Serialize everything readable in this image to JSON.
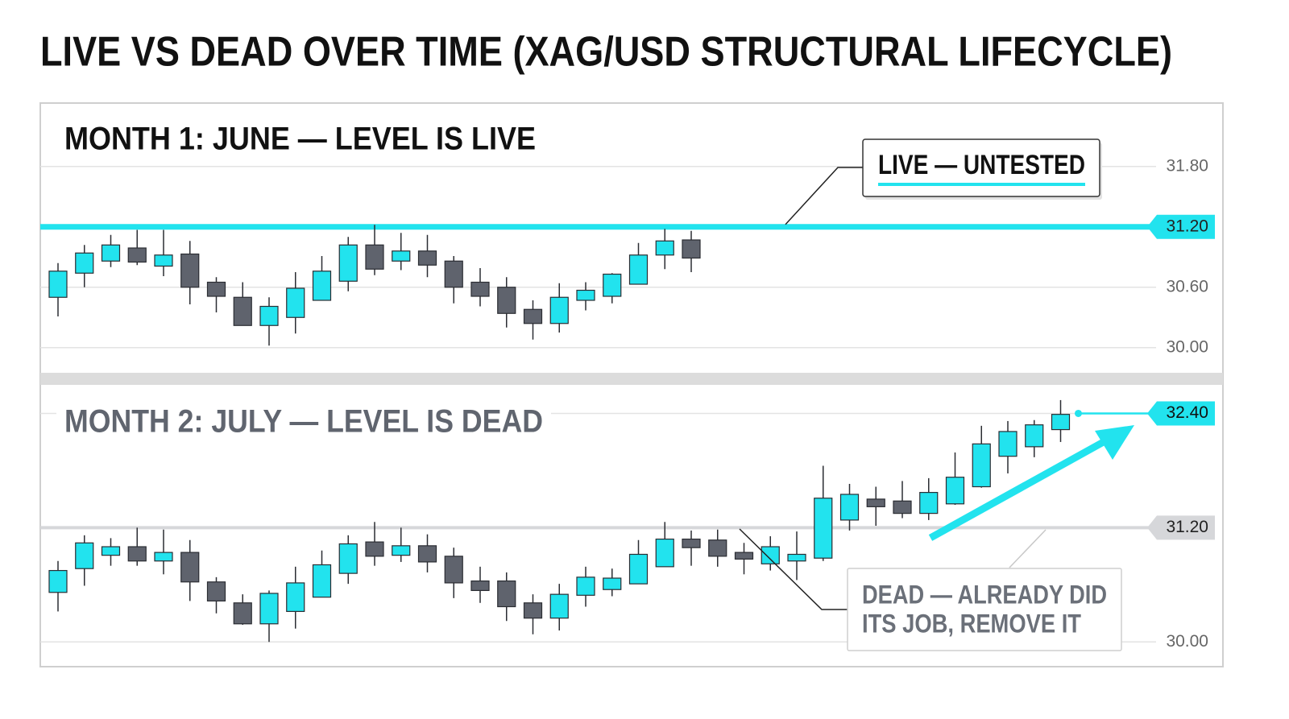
{
  "title": "LIVE VS DEAD OVER TIME (XAG/USD STRUCTURAL LIFECYCLE)",
  "chart_data": [
    {
      "type": "candlestick",
      "title": "MONTH 1: JUNE — LEVEL IS LIVE",
      "title_color": "#111111",
      "open": [
        30.5,
        30.74,
        30.86,
        30.99,
        30.81,
        30.93,
        30.65,
        30.5,
        30.22,
        30.3,
        30.47,
        30.66,
        31.02,
        30.86,
        30.96,
        30.86,
        30.65,
        30.6,
        30.38,
        30.24,
        30.47,
        30.51,
        30.63,
        30.92,
        31.07
      ],
      "high": [
        30.84,
        31.02,
        31.12,
        31.17,
        31.17,
        31.06,
        30.7,
        30.65,
        30.5,
        30.75,
        30.91,
        31.1,
        31.22,
        31.14,
        31.12,
        30.91,
        30.79,
        30.7,
        30.47,
        30.64,
        30.65,
        30.74,
        31.04,
        31.18,
        31.16
      ],
      "low": [
        30.31,
        30.6,
        30.8,
        30.82,
        30.71,
        30.43,
        30.35,
        30.22,
        30.02,
        30.14,
        30.47,
        30.56,
        30.72,
        30.77,
        30.7,
        30.44,
        30.41,
        30.2,
        30.08,
        30.15,
        30.37,
        30.44,
        30.63,
        30.78,
        30.75
      ],
      "close": [
        30.76,
        30.94,
        31.02,
        30.85,
        30.92,
        30.6,
        30.51,
        30.22,
        30.41,
        30.59,
        30.76,
        31.02,
        30.78,
        30.96,
        30.82,
        30.6,
        30.51,
        30.34,
        30.24,
        30.5,
        30.57,
        30.73,
        30.92,
        31.06,
        30.89
      ],
      "up_color": "#22e3ee",
      "down_color": "#5f636d",
      "ylim": [
        29.75,
        32.43
      ],
      "yticks": [
        {
          "value": 30.0,
          "label": "30.00"
        },
        {
          "value": 30.6,
          "label": "30.60"
        },
        {
          "value": 31.2,
          "label": "31.20"
        },
        {
          "value": 31.8,
          "label": "31.80"
        }
      ],
      "grid": true,
      "level": 31.2,
      "level_color": "#22e3ee",
      "annotation": "LIVE — UNTESTED"
    },
    {
      "type": "candlestick",
      "title": "MONTH 2: JULY — LEVEL IS DEAD",
      "title_color": "#60656f",
      "open": [
        30.52,
        30.77,
        30.91,
        31.0,
        30.85,
        30.94,
        30.63,
        30.41,
        30.19,
        30.32,
        30.47,
        30.72,
        31.05,
        30.91,
        31.01,
        30.9,
        30.64,
        30.64,
        30.41,
        30.25,
        30.49,
        30.55,
        30.61,
        30.79,
        31.08,
        31.07,
        30.94,
        30.82,
        30.85,
        30.88,
        31.28,
        31.5,
        31.48,
        31.35,
        31.45,
        31.63,
        31.95,
        32.05,
        32.23
      ],
      "high": [
        30.85,
        31.12,
        31.09,
        31.2,
        31.18,
        31.07,
        30.68,
        30.5,
        30.54,
        30.79,
        30.96,
        31.12,
        31.26,
        31.2,
        31.13,
        30.99,
        30.79,
        30.73,
        30.5,
        30.61,
        30.79,
        30.77,
        31.07,
        31.26,
        31.17,
        31.18,
        31.04,
        31.11,
        31.16,
        31.85,
        31.66,
        31.63,
        31.69,
        31.72,
        31.99,
        32.27,
        32.32,
        32.33,
        32.54
      ],
      "low": [
        30.32,
        30.59,
        30.8,
        30.8,
        30.71,
        30.43,
        30.3,
        30.18,
        30.0,
        30.14,
        30.47,
        30.61,
        30.8,
        30.84,
        30.73,
        30.46,
        30.41,
        30.22,
        30.08,
        30.12,
        30.37,
        30.48,
        30.61,
        30.79,
        30.8,
        30.79,
        30.71,
        30.75,
        30.65,
        30.85,
        31.17,
        31.22,
        31.3,
        31.28,
        31.44,
        31.62,
        31.77,
        31.94,
        32.1
      ],
      "close": [
        30.75,
        31.04,
        31.0,
        30.85,
        30.94,
        30.63,
        30.43,
        30.19,
        30.51,
        30.62,
        30.81,
        31.03,
        30.9,
        31.01,
        30.84,
        30.62,
        30.54,
        30.37,
        30.25,
        30.5,
        30.68,
        30.67,
        30.92,
        31.08,
        30.99,
        30.9,
        30.87,
        31.0,
        30.92,
        31.51,
        31.55,
        31.42,
        31.35,
        31.57,
        31.73,
        32.08,
        32.21,
        32.28,
        32.39
      ],
      "up_color": "#22e3ee",
      "down_color": "#5f636d",
      "ylim": [
        29.74,
        32.7
      ],
      "yticks": [
        {
          "value": 30.0,
          "label": "30.00"
        },
        {
          "value": 31.2,
          "label": "31.20"
        },
        {
          "value": 32.4,
          "label": "32.40"
        }
      ],
      "grid": true,
      "level": 31.2,
      "level_color": "#d6d7da",
      "last": 32.4,
      "last_color": "#22e3ee",
      "annotation_lines": [
        "DEAD — ALREADY DID",
        "ITS JOB, REMOVE IT"
      ]
    }
  ]
}
